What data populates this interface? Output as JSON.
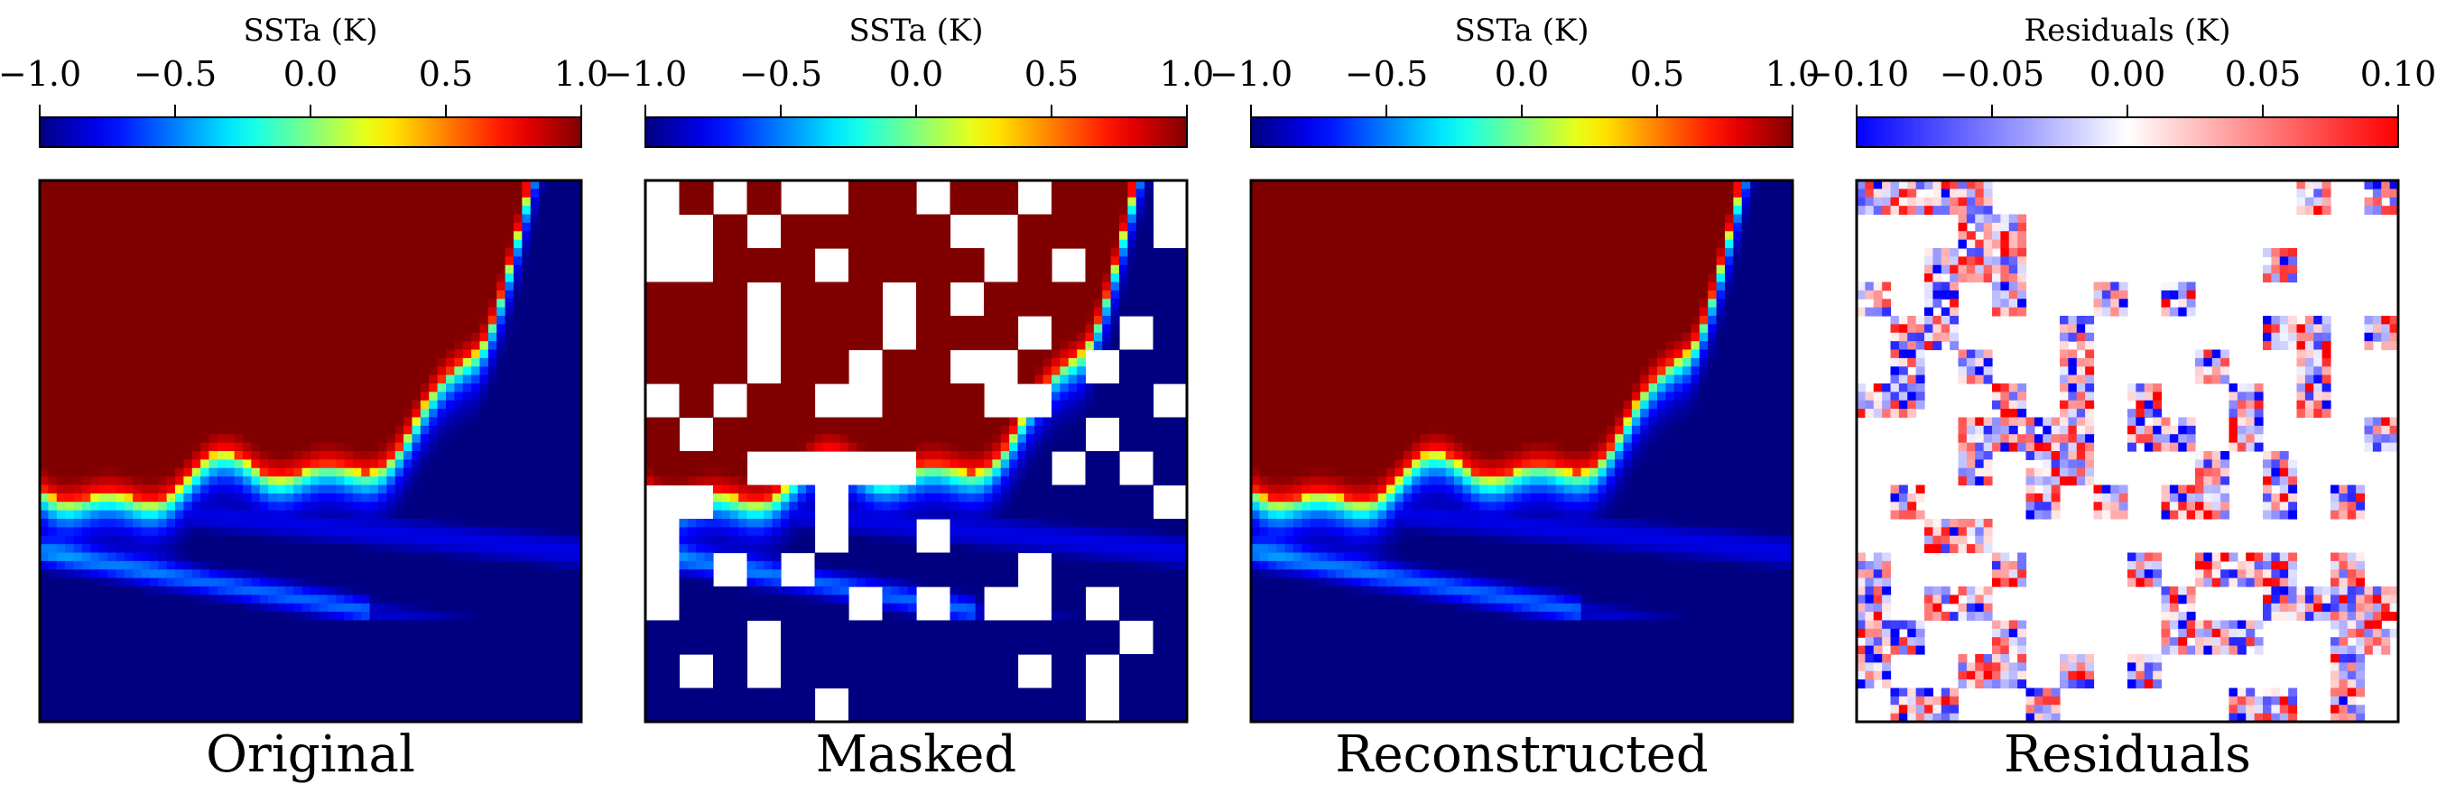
{
  "chart_data": [
    {
      "type": "heatmap",
      "title": "Original",
      "colorbar": {
        "label": "SSTa (K)",
        "colormap": "jet",
        "range": [
          -1.0,
          1.0
        ],
        "ticks": [
          "−1.0",
          "−0.5",
          "0.0",
          "0.5",
          "1.0"
        ]
      },
      "masked": false
    },
    {
      "type": "heatmap",
      "title": "Masked",
      "colorbar": {
        "label": "SSTa (K)",
        "colormap": "jet",
        "range": [
          -1.0,
          1.0
        ],
        "ticks": [
          "−1.0",
          "−0.5",
          "0.0",
          "0.5",
          "1.0"
        ]
      },
      "masked": true
    },
    {
      "type": "heatmap",
      "title": "Reconstructed",
      "colorbar": {
        "label": "SSTa (K)",
        "colormap": "jet",
        "range": [
          -1.0,
          1.0
        ],
        "ticks": [
          "−1.0",
          "−0.5",
          "0.0",
          "0.5",
          "1.0"
        ]
      },
      "masked": false
    },
    {
      "type": "heatmap",
      "title": "Residuals",
      "colorbar": {
        "label": "Residuals (K)",
        "colormap": "bwr",
        "range": [
          -0.1,
          0.1
        ],
        "ticks": [
          "−0.10",
          "−0.05",
          "0.00",
          "0.05",
          "0.10"
        ]
      },
      "masked": false
    }
  ]
}
